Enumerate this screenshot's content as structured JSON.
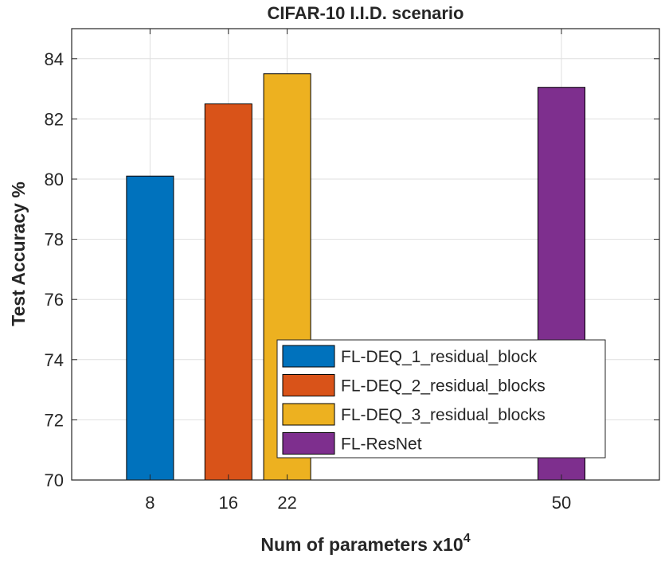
{
  "chart_data": {
    "type": "bar",
    "title": "CIFAR-10 I.I.D. scenario",
    "xlabel": "Num of parameters x10",
    "xlabel_exponent": "4",
    "ylabel": "Test Accuracy %",
    "xlim": [
      0,
      60
    ],
    "ylim": [
      70,
      85
    ],
    "xticks": [
      8,
      16,
      22,
      50
    ],
    "yticks": [
      70,
      72,
      74,
      76,
      78,
      80,
      82,
      84
    ],
    "bar_width": 4.8,
    "grid": true,
    "legend_position": "lower-right",
    "series": [
      {
        "name": "FL-DEQ_1_residual_block",
        "x": 8,
        "value": 80.1,
        "color": "#0072BD"
      },
      {
        "name": "FL-DEQ_2_residual_blocks",
        "x": 16,
        "value": 82.5,
        "color": "#D95319"
      },
      {
        "name": "FL-DEQ_3_residual_blocks",
        "x": 22,
        "value": 83.5,
        "color": "#EDB120"
      },
      {
        "name": "FL-ResNet",
        "x": 50,
        "value": 83.05,
        "color": "#7E2F8E"
      }
    ]
  }
}
